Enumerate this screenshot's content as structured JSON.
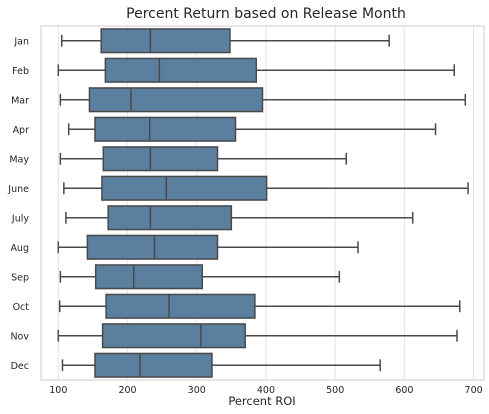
{
  "chart_data": {
    "type": "boxplot",
    "orientation": "horizontal",
    "title": "Percent Return based on Release Month",
    "xlabel": "Percent ROI",
    "ylabel": "",
    "xlim": [
      75,
      715
    ],
    "xticks": [
      100,
      200,
      300,
      400,
      500,
      600,
      700
    ],
    "grid": "vertical",
    "box_color": "#5b7f9f",
    "line_color": "#4a4a4a",
    "categories": [
      "Jan",
      "Feb",
      "Mar",
      "Apr",
      "May",
      "June",
      "July",
      "Aug",
      "Sep",
      "Oct",
      "Nov",
      "Dec"
    ],
    "boxes": [
      {
        "label": "Jan",
        "whisker_low": 105,
        "q1": 162,
        "median": 233,
        "q3": 348,
        "whisker_high": 578
      },
      {
        "label": "Feb",
        "whisker_low": 100,
        "q1": 168,
        "median": 246,
        "q3": 386,
        "whisker_high": 672
      },
      {
        "label": "Mar",
        "whisker_low": 103,
        "q1": 145,
        "median": 205,
        "q3": 395,
        "whisker_high": 688
      },
      {
        "label": "Apr",
        "whisker_low": 115,
        "q1": 153,
        "median": 232,
        "q3": 356,
        "whisker_high": 645
      },
      {
        "label": "May",
        "whisker_low": 103,
        "q1": 165,
        "median": 233,
        "q3": 330,
        "whisker_high": 516
      },
      {
        "label": "June",
        "whisker_low": 108,
        "q1": 163,
        "median": 256,
        "q3": 401,
        "whisker_high": 692
      },
      {
        "label": "July",
        "whisker_low": 111,
        "q1": 172,
        "median": 233,
        "q3": 350,
        "whisker_high": 612
      },
      {
        "label": "Aug",
        "whisker_low": 100,
        "q1": 142,
        "median": 239,
        "q3": 330,
        "whisker_high": 533
      },
      {
        "label": "Sep",
        "whisker_low": 103,
        "q1": 154,
        "median": 209,
        "q3": 308,
        "whisker_high": 506
      },
      {
        "label": "Oct",
        "whisker_low": 102,
        "q1": 169,
        "median": 260,
        "q3": 384,
        "whisker_high": 680
      },
      {
        "label": "Nov",
        "whisker_low": 100,
        "q1": 164,
        "median": 306,
        "q3": 370,
        "whisker_high": 676
      },
      {
        "label": "Dec",
        "whisker_low": 106,
        "q1": 153,
        "median": 218,
        "q3": 322,
        "whisker_high": 565
      }
    ]
  }
}
